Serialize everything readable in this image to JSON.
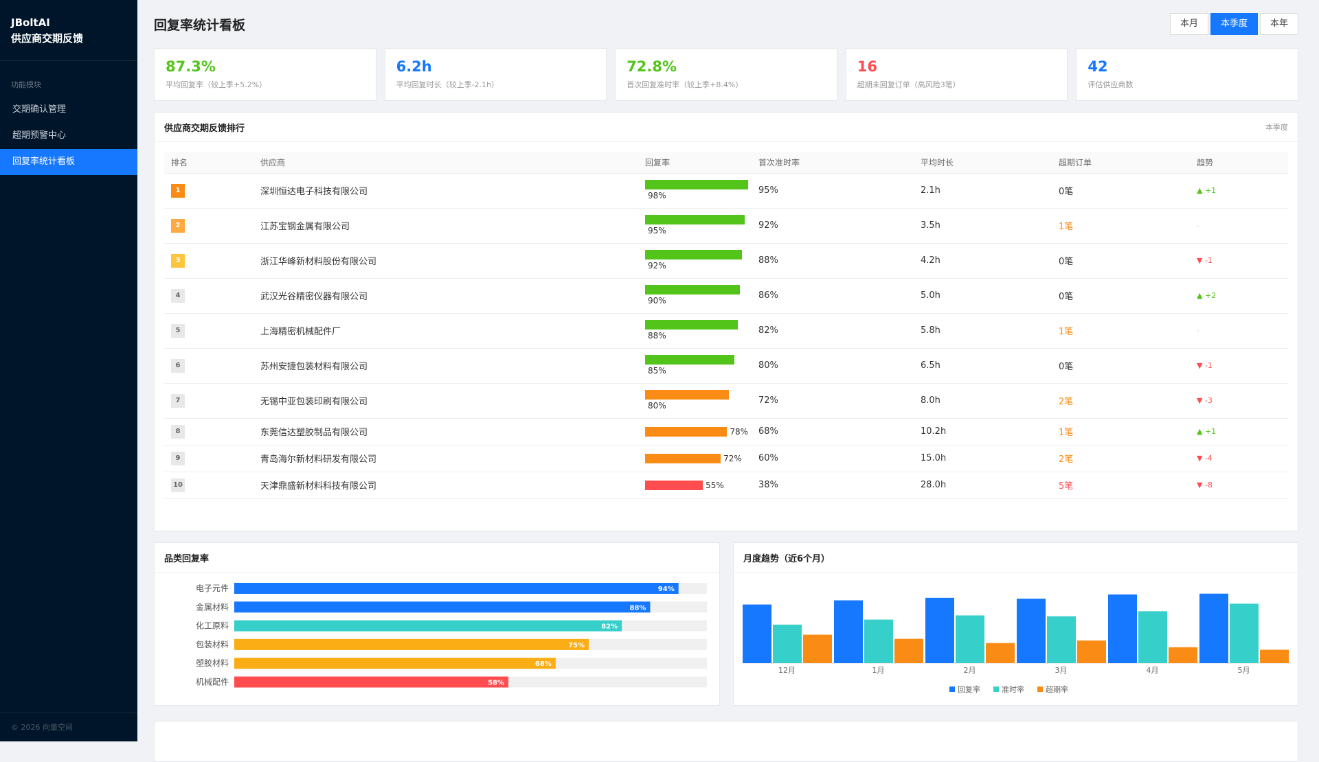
{
  "sidebar": {
    "brand": "JBoltAI",
    "subtitle": "供应商交期反馈",
    "section": "功能模块",
    "menu": [
      "交期确认管理",
      "超期预警中心",
      "回复率统计看板"
    ],
    "active": 2,
    "footer": "© 2026 向量空间"
  },
  "header": {
    "title": "回复率统计看板",
    "tabs": [
      "本月",
      "本季度",
      "本年"
    ],
    "active_tab": 1
  },
  "kpis": [
    {
      "value": "87.3%",
      "label": "平均回复率（较上季+5.2%）",
      "color": "#52c41a"
    },
    {
      "value": "6.2h",
      "label": "平均回复时长（较上季-2.1h）",
      "color": "#1677ff"
    },
    {
      "value": "72.8%",
      "label": "首次回复准时率（较上季+8.4%）",
      "color": "#52c41a"
    },
    {
      "value": "16",
      "label": "超期未回复订单（高风险3笔）",
      "color": "#ff4d4f"
    },
    {
      "value": "42",
      "label": "评估供应商数",
      "color": "#1677ff"
    }
  ],
  "ranking": {
    "title": "供应商交期反馈排行",
    "period": "本季度",
    "columns": [
      "排名",
      "供应商",
      "回复率",
      "首次准时率",
      "平均时长",
      "超期订单",
      "趋势"
    ],
    "rows": [
      {
        "rank": 1,
        "supplier": "深圳恒达电子科技有限公司",
        "reply_rate": 98,
        "reply_rate_label": "98%",
        "bar_color": "#52c41a",
        "on_time": "95%",
        "avg_time": "2.1h",
        "overdue": "0笔",
        "overdue_color": "#333333",
        "trend": "▲ +1",
        "trend_color": "#52c41a",
        "badge_color": "#fa8c16",
        "badge_text_color": "#ffffff"
      },
      {
        "rank": 2,
        "supplier": "江苏宝钢金属有限公司",
        "reply_rate": 95,
        "reply_rate_label": "95%",
        "bar_color": "#52c41a",
        "on_time": "92%",
        "avg_time": "3.5h",
        "overdue": "1笔",
        "overdue_color": "#fa8c16",
        "trend": "-",
        "trend_color": "#cccccc",
        "badge_color": "#ffa940",
        "badge_text_color": "#ffffff"
      },
      {
        "rank": 3,
        "supplier": "浙江华峰新材料股份有限公司",
        "reply_rate": 92,
        "reply_rate_label": "92%",
        "bar_color": "#52c41a",
        "on_time": "88%",
        "avg_time": "4.2h",
        "overdue": "0笔",
        "overdue_color": "#333333",
        "trend": "▼ -1",
        "trend_color": "#ff4d4f",
        "badge_color": "#ffc53d",
        "badge_text_color": "#ffffff"
      },
      {
        "rank": 4,
        "supplier": "武汉光谷精密仪器有限公司",
        "reply_rate": 90,
        "reply_rate_label": "90%",
        "bar_color": "#52c41a",
        "on_time": "86%",
        "avg_time": "5.0h",
        "overdue": "0笔",
        "overdue_color": "#333333",
        "trend": "▲ +2",
        "trend_color": "#52c41a",
        "badge_color": "#e8e8e8",
        "badge_text_color": "#666666"
      },
      {
        "rank": 5,
        "supplier": "上海精密机械配件厂",
        "reply_rate": 88,
        "reply_rate_label": "88%",
        "bar_color": "#52c41a",
        "on_time": "82%",
        "avg_time": "5.8h",
        "overdue": "1笔",
        "overdue_color": "#fa8c16",
        "trend": "-",
        "trend_color": "#cccccc",
        "badge_color": "#e8e8e8",
        "badge_text_color": "#666666"
      },
      {
        "rank": 6,
        "supplier": "苏州安捷包装材料有限公司",
        "reply_rate": 85,
        "reply_rate_label": "85%",
        "bar_color": "#52c41a",
        "on_time": "80%",
        "avg_time": "6.5h",
        "overdue": "0笔",
        "overdue_color": "#333333",
        "trend": "▼ -1",
        "trend_color": "#ff4d4f",
        "badge_color": "#e8e8e8",
        "badge_text_color": "#666666"
      },
      {
        "rank": 7,
        "supplier": "无锡中亚包装印刷有限公司",
        "reply_rate": 80,
        "reply_rate_label": "80%",
        "bar_color": "#fa8c16",
        "on_time": "72%",
        "avg_time": "8.0h",
        "overdue": "2笔",
        "overdue_color": "#fa8c16",
        "trend": "▼ -3",
        "trend_color": "#ff4d4f",
        "badge_color": "#e8e8e8",
        "badge_text_color": "#666666"
      },
      {
        "rank": 8,
        "supplier": "东莞信达塑胶制品有限公司",
        "reply_rate": 78,
        "reply_rate_label": "78%",
        "bar_color": "#fa8c16",
        "on_time": "68%",
        "avg_time": "10.2h",
        "overdue": "1笔",
        "overdue_color": "#fa8c16",
        "trend": "▲ +1",
        "trend_color": "#52c41a",
        "badge_color": "#e8e8e8",
        "badge_text_color": "#666666"
      },
      {
        "rank": 9,
        "supplier": "青岛海尔新材料研发有限公司",
        "reply_rate": 72,
        "reply_rate_label": "72%",
        "bar_color": "#fa8c16",
        "on_time": "60%",
        "avg_time": "15.0h",
        "overdue": "2笔",
        "overdue_color": "#fa8c16",
        "trend": "▼ -4",
        "trend_color": "#ff4d4f",
        "badge_color": "#e8e8e8",
        "badge_text_color": "#666666"
      },
      {
        "rank": 10,
        "supplier": "天津鼎盛新材料科技有限公司",
        "reply_rate": 55,
        "reply_rate_label": "55%",
        "bar_color": "#ff4d4f",
        "on_time": "38%",
        "avg_time": "28.0h",
        "overdue": "5笔",
        "overdue_color": "#ff4d4f",
        "trend": "▼ -8",
        "trend_color": "#ff4d4f",
        "badge_color": "#e8e8e8",
        "badge_text_color": "#666666"
      }
    ]
  },
  "category_chart": {
    "type": "bar",
    "title": "品类回复率",
    "categories": [
      "电子元件",
      "金属材料",
      "化工原料",
      "包装材料",
      "塑胶材料",
      "机械配件"
    ],
    "values": [
      94,
      88,
      82,
      75,
      68,
      58
    ],
    "value_labels": [
      "94%",
      "88%",
      "82%",
      "75%",
      "68%",
      "58%"
    ],
    "colors": [
      "#1677ff",
      "#1677ff",
      "#36cfc9",
      "#faad14",
      "#faad14",
      "#ff4d4f"
    ],
    "xlim": [
      0,
      100
    ]
  },
  "monthly_chart": {
    "type": "bar",
    "title": "月度趋势（近6个月）",
    "categories": [
      "12月",
      "1月",
      "2月",
      "3月",
      "4月",
      "5月"
    ],
    "ylim": [
      0,
      100
    ],
    "series": [
      {
        "name": "回复率",
        "color": "#1677ff",
        "values": [
          70,
          75,
          78,
          77,
          82,
          83
        ]
      },
      {
        "name": "准时率",
        "color": "#36cfc9",
        "values": [
          46,
          52,
          57,
          56,
          62,
          71
        ]
      },
      {
        "name": "超期率",
        "color": "#fa8c16",
        "values": [
          34,
          29,
          24,
          27,
          19,
          16
        ]
      }
    ]
  }
}
